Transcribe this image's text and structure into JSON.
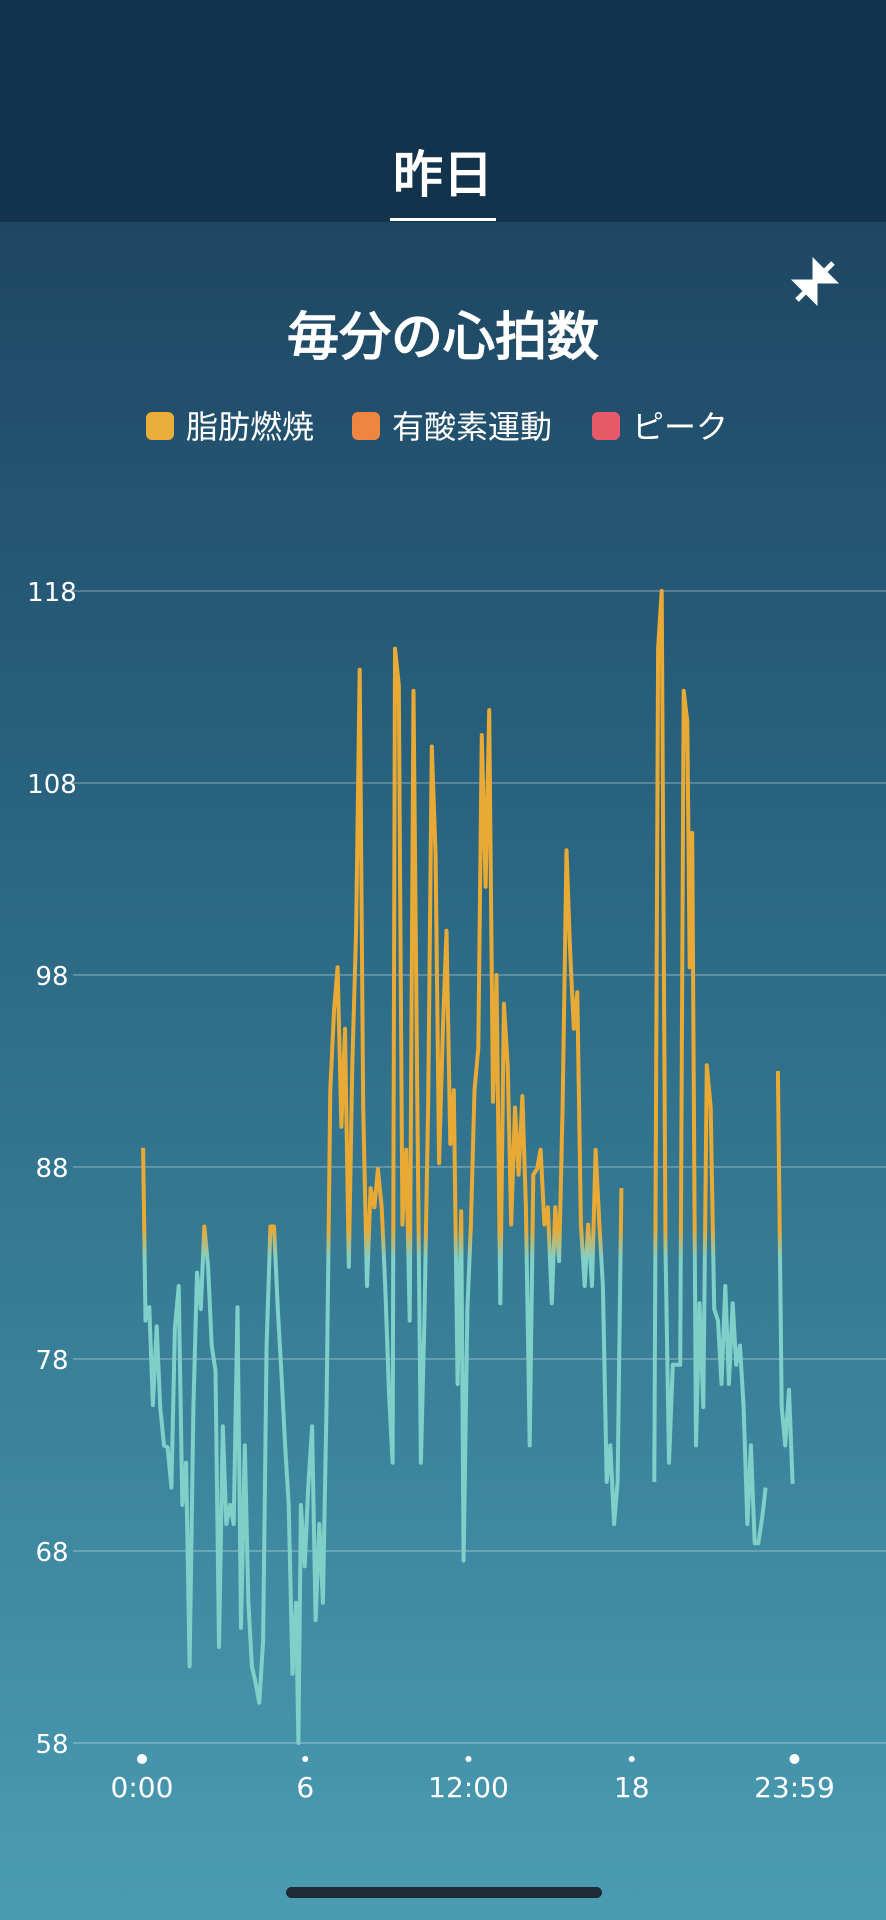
{
  "header": {
    "tab": "昨日"
  },
  "chart_data": {
    "type": "line",
    "title": "毎分の心拍数",
    "legend": [
      {
        "name": "脂肪燃焼",
        "color": "#e9ad3a"
      },
      {
        "name": "有酸素運動",
        "color": "#ef8540"
      },
      {
        "name": "ピーク",
        "color": "#e85a6a"
      }
    ],
    "x": [
      0.04,
      0.13,
      0.27,
      0.4,
      0.54,
      0.67,
      0.81,
      0.94,
      1.08,
      1.21,
      1.35,
      1.48,
      1.62,
      1.75,
      1.89,
      2.02,
      2.16,
      2.29,
      2.43,
      2.56,
      2.7,
      2.83,
      2.97,
      3.1,
      3.24,
      3.37,
      3.51,
      3.64,
      3.78,
      3.91,
      4.04,
      4.18,
      4.31,
      4.45,
      4.58,
      4.72,
      4.85,
      4.99,
      5.12,
      5.26,
      5.39,
      5.53,
      5.66,
      5.75,
      5.84,
      5.98,
      6.11,
      6.25,
      6.38,
      6.52,
      6.65,
      6.79,
      6.92,
      7.06,
      7.19,
      7.33,
      7.46,
      7.6,
      7.73,
      7.87,
      8.0,
      8.13,
      8.27,
      8.4,
      8.54,
      8.67,
      8.81,
      8.94,
      9.08,
      9.21,
      9.3,
      9.44,
      9.57,
      9.71,
      9.84,
      9.98,
      10.11,
      10.25,
      10.38,
      10.52,
      10.65,
      10.79,
      10.92,
      11.06,
      11.19,
      11.33,
      11.46,
      11.6,
      11.73,
      11.82,
      11.96,
      12.09,
      12.22,
      12.36,
      12.49,
      12.63,
      12.76,
      12.9,
      13.03,
      13.17,
      13.3,
      13.44,
      13.57,
      13.71,
      13.84,
      13.98,
      14.11,
      14.25,
      14.38,
      14.52,
      14.65,
      14.79,
      14.92,
      15.06,
      15.19,
      15.33,
      15.46,
      15.6,
      15.73,
      15.87,
      16.0,
      16.13,
      16.27,
      16.4,
      16.54,
      16.67,
      16.81,
      16.94,
      17.08,
      17.21,
      17.35,
      17.48,
      17.62,
      18.0,
      18.83,
      18.97,
      19.1,
      19.24,
      19.37,
      19.51,
      19.64,
      19.78,
      19.91,
      20.04,
      20.13,
      20.22,
      20.36,
      20.49,
      20.63,
      20.76,
      20.9,
      21.03,
      21.17,
      21.3,
      21.44,
      21.57,
      21.71,
      21.84,
      21.98,
      22.11,
      22.25,
      22.38,
      22.52,
      22.65,
      22.79,
      22.92,
      23.2,
      23.37,
      23.51,
      23.64,
      23.78,
      23.91
    ],
    "series": [
      {
        "values": [
          89.0,
          80.0,
          80.7,
          75.6,
          79.7,
          75.5,
          73.5,
          73.4,
          71.3,
          79.6,
          81.8,
          70.4,
          72.6,
          62.0,
          75.5,
          82.5,
          80.6,
          84.9,
          82.8,
          78.7,
          77.4,
          63.0,
          74.5,
          69.4,
          70.4,
          69.4,
          80.7,
          64.0,
          73.5,
          65.3,
          62.0,
          61.1,
          60.1,
          63.3,
          78.7,
          84.9,
          84.9,
          80.6,
          77.4,
          73.5,
          70.4,
          61.6,
          65.3,
          58.0,
          70.4,
          67.2,
          71.3,
          74.5,
          64.4,
          69.4,
          65.3,
          76.1,
          92.0,
          96.2,
          98.4,
          90.1,
          95.2,
          82.8,
          93.3,
          100.3,
          113.9,
          91.1,
          81.8,
          86.9,
          85.9,
          87.9,
          85.9,
          81.8,
          76.1,
          72.6,
          115.0,
          113.1,
          85.0,
          88.9,
          80.0,
          112.8,
          92.6,
          72.6,
          80.0,
          91.4,
          109.9,
          104.2,
          88.2,
          95.2,
          100.3,
          89.2,
          92.0,
          76.7,
          85.7,
          67.5,
          80.6,
          85.0,
          92.0,
          94.2,
          110.5,
          102.6,
          111.8,
          91.4,
          98.0,
          80.9,
          96.5,
          93.3,
          85.0,
          91.1,
          87.6,
          91.7,
          85.9,
          73.5,
          87.6,
          87.9,
          88.9,
          85.0,
          85.9,
          80.9,
          85.9,
          83.1,
          91.1,
          104.5,
          99.4,
          95.2,
          97.1,
          85.0,
          81.8,
          85.0,
          81.8,
          88.9,
          85.0,
          81.8,
          71.6,
          73.5,
          69.4,
          71.6,
          86.9,
          null,
          71.6,
          115.0,
          118.0,
          83.8,
          72.6,
          77.7,
          77.7,
          77.7,
          112.8,
          111.2,
          98.4,
          105.4,
          73.5,
          80.9,
          75.5,
          93.3,
          91.1,
          80.6,
          80.0,
          76.7,
          81.8,
          76.7,
          80.9,
          77.7,
          78.7,
          75.5,
          69.4,
          73.5,
          68.4,
          68.4,
          69.7,
          71.3,
          null,
          93.0,
          75.5,
          73.5,
          76.4,
          71.5
        ],
        "color": "#e8aa35",
        "low_color": "#7fd0c8",
        "threshold": 84
      }
    ],
    "xlim": [
      0,
      24
    ],
    "xticks": [
      {
        "value": 0,
        "label": "0:00"
      },
      6,
      {
        "value": 12,
        "label": "12:00"
      },
      18,
      {
        "value": 23.98,
        "label": "23:59"
      }
    ],
    "ylim": [
      58,
      118
    ],
    "yticks": [
      58,
      68,
      78,
      88,
      98,
      108,
      118
    ],
    "grid": true
  }
}
